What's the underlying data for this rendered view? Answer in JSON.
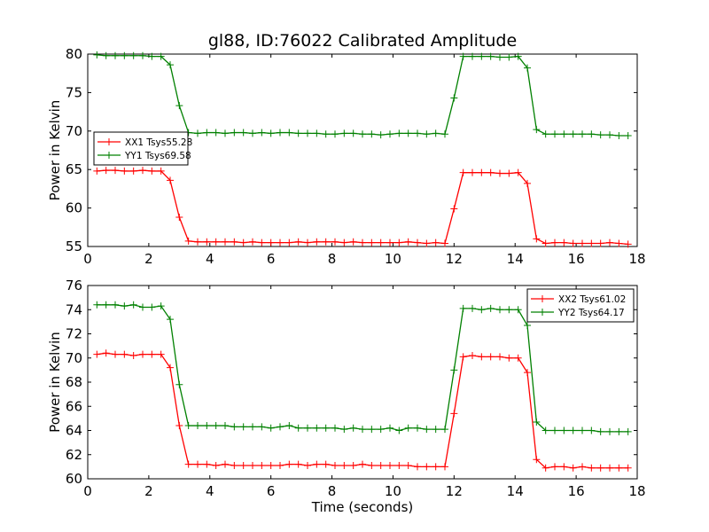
{
  "title": "gl88, ID:76022 Calibrated Amplitude",
  "colors": {
    "red": "#ff0000",
    "green": "#008000"
  },
  "chart_data": [
    {
      "type": "line",
      "xlabel": "",
      "ylabel": "Power in Kelvin",
      "xlim": [
        0,
        18
      ],
      "ylim": [
        55,
        80
      ],
      "xticks": [
        0,
        2,
        4,
        6,
        8,
        10,
        12,
        14,
        16,
        18
      ],
      "yticks": [
        55,
        60,
        65,
        70,
        75,
        80
      ],
      "legend": {
        "position": "center-left"
      },
      "x": [
        0.3,
        0.6,
        0.9,
        1.2,
        1.5,
        1.8,
        2.1,
        2.4,
        2.7,
        3.0,
        3.3,
        3.6,
        3.9,
        4.2,
        4.5,
        4.8,
        5.1,
        5.4,
        5.7,
        6.0,
        6.3,
        6.6,
        6.9,
        7.2,
        7.5,
        7.8,
        8.1,
        8.4,
        8.7,
        9.0,
        9.3,
        9.6,
        9.9,
        10.2,
        10.5,
        10.8,
        11.1,
        11.4,
        11.7,
        12.0,
        12.3,
        12.6,
        12.9,
        13.2,
        13.5,
        13.8,
        14.1,
        14.4,
        14.7,
        15.0,
        15.3,
        15.6,
        15.9,
        16.2,
        16.5,
        16.8,
        17.1,
        17.4,
        17.7
      ],
      "series": [
        {
          "name": "XX1 Tsys55.28",
          "color": "#ff0000",
          "values": [
            64.8,
            64.9,
            64.9,
            64.8,
            64.8,
            64.9,
            64.8,
            64.8,
            63.6,
            58.8,
            55.7,
            55.6,
            55.6,
            55.6,
            55.6,
            55.6,
            55.5,
            55.6,
            55.5,
            55.5,
            55.5,
            55.5,
            55.6,
            55.5,
            55.6,
            55.6,
            55.6,
            55.5,
            55.6,
            55.5,
            55.5,
            55.5,
            55.5,
            55.5,
            55.6,
            55.5,
            55.4,
            55.5,
            55.4,
            59.9,
            64.6,
            64.6,
            64.6,
            64.6,
            64.5,
            64.5,
            64.6,
            63.2,
            56.0,
            55.4,
            55.5,
            55.5,
            55.4,
            55.4,
            55.4,
            55.4,
            55.5,
            55.4,
            55.3
          ]
        },
        {
          "name": "YY1 Tsys69.58",
          "color": "#008000",
          "values": [
            79.9,
            79.8,
            79.8,
            79.8,
            79.8,
            79.8,
            79.7,
            79.7,
            78.6,
            73.3,
            69.8,
            69.7,
            69.8,
            69.8,
            69.7,
            69.8,
            69.8,
            69.7,
            69.8,
            69.7,
            69.8,
            69.8,
            69.7,
            69.7,
            69.7,
            69.6,
            69.6,
            69.7,
            69.7,
            69.6,
            69.6,
            69.5,
            69.6,
            69.7,
            69.7,
            69.7,
            69.6,
            69.7,
            69.6,
            74.3,
            79.7,
            79.7,
            79.7,
            79.7,
            79.6,
            79.6,
            79.7,
            78.2,
            70.2,
            69.6,
            69.6,
            69.6,
            69.6,
            69.6,
            69.6,
            69.5,
            69.5,
            69.4,
            69.4
          ]
        }
      ]
    },
    {
      "type": "line",
      "xlabel": "Time (seconds)",
      "ylabel": "Power in Kelvin",
      "xlim": [
        0,
        18
      ],
      "ylim": [
        60,
        76
      ],
      "xticks": [
        0,
        2,
        4,
        6,
        8,
        10,
        12,
        14,
        16,
        18
      ],
      "yticks": [
        60,
        62,
        64,
        66,
        68,
        70,
        72,
        74,
        76
      ],
      "legend": {
        "position": "top-right"
      },
      "x": [
        0.3,
        0.6,
        0.9,
        1.2,
        1.5,
        1.8,
        2.1,
        2.4,
        2.7,
        3.0,
        3.3,
        3.6,
        3.9,
        4.2,
        4.5,
        4.8,
        5.1,
        5.4,
        5.7,
        6.0,
        6.3,
        6.6,
        6.9,
        7.2,
        7.5,
        7.8,
        8.1,
        8.4,
        8.7,
        9.0,
        9.3,
        9.6,
        9.9,
        10.2,
        10.5,
        10.8,
        11.1,
        11.4,
        11.7,
        12.0,
        12.3,
        12.6,
        12.9,
        13.2,
        13.5,
        13.8,
        14.1,
        14.4,
        14.7,
        15.0,
        15.3,
        15.6,
        15.9,
        16.2,
        16.5,
        16.8,
        17.1,
        17.4,
        17.7
      ],
      "series": [
        {
          "name": "XX2 Tsys61.02",
          "color": "#ff0000",
          "values": [
            70.3,
            70.4,
            70.3,
            70.3,
            70.2,
            70.3,
            70.3,
            70.3,
            69.2,
            64.4,
            61.2,
            61.2,
            61.2,
            61.1,
            61.2,
            61.1,
            61.1,
            61.1,
            61.1,
            61.1,
            61.1,
            61.2,
            61.2,
            61.1,
            61.2,
            61.2,
            61.1,
            61.1,
            61.1,
            61.2,
            61.1,
            61.1,
            61.1,
            61.1,
            61.1,
            61.0,
            61.0,
            61.0,
            61.0,
            65.4,
            70.1,
            70.2,
            70.1,
            70.1,
            70.1,
            70.0,
            70.0,
            68.8,
            61.6,
            60.9,
            61.0,
            61.0,
            60.9,
            61.0,
            60.9,
            60.9,
            60.9,
            60.9,
            60.9
          ]
        },
        {
          "name": "YY2 Tsys64.17",
          "color": "#008000",
          "values": [
            74.4,
            74.4,
            74.4,
            74.3,
            74.4,
            74.2,
            74.2,
            74.3,
            73.2,
            67.8,
            64.4,
            64.4,
            64.4,
            64.4,
            64.4,
            64.3,
            64.3,
            64.3,
            64.3,
            64.2,
            64.3,
            64.4,
            64.2,
            64.2,
            64.2,
            64.2,
            64.2,
            64.1,
            64.2,
            64.1,
            64.1,
            64.1,
            64.2,
            64.0,
            64.2,
            64.2,
            64.1,
            64.1,
            64.1,
            69.0,
            74.1,
            74.1,
            74.0,
            74.1,
            74.0,
            74.0,
            74.0,
            72.7,
            64.7,
            64.0,
            64.0,
            64.0,
            64.0,
            64.0,
            64.0,
            63.9,
            63.9,
            63.9,
            63.9
          ]
        }
      ]
    }
  ]
}
